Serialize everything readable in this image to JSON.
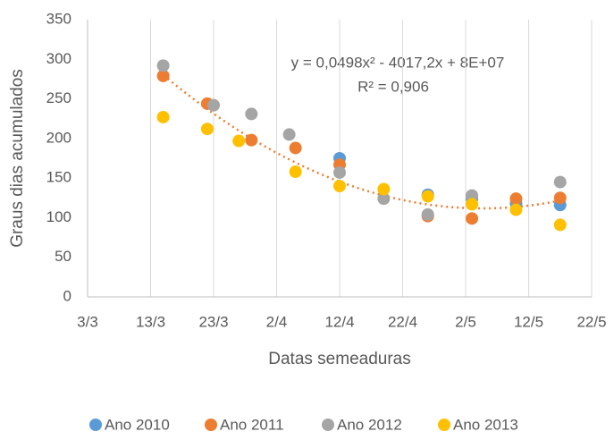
{
  "chart_data": {
    "type": "scatter",
    "x_label": "Datas semeaduras",
    "y_label": "Graus dias acumulados",
    "xlim": [
      "3/3",
      "22/5"
    ],
    "xticks": [
      "3/3",
      "13/3",
      "23/3",
      "2/4",
      "12/4",
      "22/4",
      "2/5",
      "12/5",
      "22/5"
    ],
    "ylim": [
      0,
      350
    ],
    "yticks": [
      0,
      50,
      100,
      150,
      200,
      250,
      300,
      350
    ],
    "grid": "x",
    "legend": "bottom",
    "annotations": [
      "y = 0,0498x² - 4017,2x + 8E+07",
      "R² = 0,906"
    ],
    "series": [
      {
        "name": "Ano 2010",
        "color": "#5b9bd5",
        "x": [
          "12/4",
          "26/4",
          "3/5",
          "10/5",
          "17/5"
        ],
        "values": [
          175,
          129,
          124,
          118,
          116
        ]
      },
      {
        "name": "Ano 2011",
        "color": "#ed7d31",
        "x": [
          "15/3",
          "22/3",
          "29/3",
          "5/4",
          "12/4",
          "26/4",
          "3/5",
          "10/5",
          "17/5"
        ],
        "values": [
          279,
          244,
          198,
          188,
          167,
          102,
          99,
          124,
          125
        ]
      },
      {
        "name": "Ano 2012",
        "color": "#a5a5a5",
        "x": [
          "15/3",
          "23/3",
          "29/3",
          "4/4",
          "12/4",
          "19/4",
          "26/4",
          "3/5",
          "17/5"
        ],
        "values": [
          292,
          242,
          231,
          205,
          157,
          124,
          104,
          128,
          145
        ]
      },
      {
        "name": "Ano 2013",
        "color": "#ffc000",
        "x": [
          "15/3",
          "22/3",
          "27/3",
          "5/4",
          "12/4",
          "19/4",
          "26/4",
          "3/5",
          "10/5",
          "17/5"
        ],
        "values": [
          227,
          212,
          197,
          158,
          140,
          136,
          127,
          117,
          110,
          91
        ]
      }
    ]
  }
}
